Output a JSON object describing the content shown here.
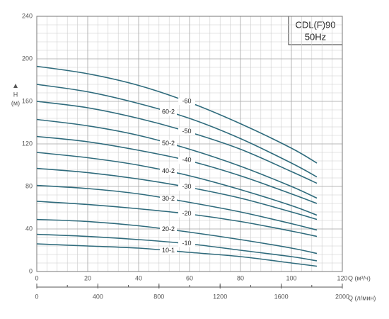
{
  "chart_data": {
    "type": "line",
    "badge": [
      "CDL(F)90",
      "50Hz"
    ],
    "y_label": [
      "H",
      "(м)"
    ],
    "x_label": "Q (м³/ч)",
    "x2_label": "Q (л/мин)",
    "x": [
      0,
      20,
      40,
      60,
      80,
      100,
      110
    ],
    "xlim": [
      0,
      120
    ],
    "xticks": [
      0,
      20,
      40,
      60,
      80,
      100,
      120
    ],
    "x2lim": [
      0,
      2000
    ],
    "x2ticks": [
      0,
      400,
      800,
      1200,
      1600,
      2000
    ],
    "ylim": [
      0,
      240
    ],
    "yticks": [
      0,
      40,
      80,
      120,
      160,
      200,
      240
    ],
    "grid": true,
    "series": [
      {
        "name": "-60",
        "color": "#2f6b7c",
        "values": [
          193,
          186,
          175,
          159,
          139,
          116,
          102
        ]
      },
      {
        "name": "60-2",
        "color": "#2f6b7c",
        "values": [
          176,
          169,
          158,
          144,
          125,
          102,
          89
        ]
      },
      {
        "name": "-50",
        "color": "#2f6b7c",
        "values": [
          160,
          154,
          144,
          131,
          115,
          94,
          83
        ]
      },
      {
        "name": "50-2",
        "color": "#2f6b7c",
        "values": [
          143,
          137,
          128,
          115,
          99,
          80,
          69
        ]
      },
      {
        "name": "-40",
        "color": "#2f6b7c",
        "values": [
          127,
          122,
          114,
          104,
          90,
          73,
          64
        ]
      },
      {
        "name": "40-2",
        "color": "#2f6b7c",
        "values": [
          112,
          107,
          100,
          90,
          77,
          62,
          53
        ]
      },
      {
        "name": "-30",
        "color": "#2f6b7c",
        "values": [
          97,
          93,
          87,
          79,
          69,
          56,
          49
        ]
      },
      {
        "name": "30-2",
        "color": "#2f6b7c",
        "values": [
          81,
          78,
          73,
          65,
          56,
          45,
          39
        ]
      },
      {
        "name": "-20",
        "color": "#2f6b7c",
        "values": [
          66,
          63,
          59,
          54,
          47,
          38,
          33
        ]
      },
      {
        "name": "20-2",
        "color": "#2f6b7c",
        "values": [
          49,
          47,
          43,
          37,
          30,
          22,
          17
        ]
      },
      {
        "name": "-10",
        "color": "#2f6b7c",
        "values": [
          35,
          33,
          30,
          26,
          20,
          14,
          10
        ]
      },
      {
        "name": "10-1",
        "color": "#2f6b7c",
        "values": [
          26,
          24,
          22,
          18,
          14,
          8,
          5
        ]
      }
    ]
  }
}
